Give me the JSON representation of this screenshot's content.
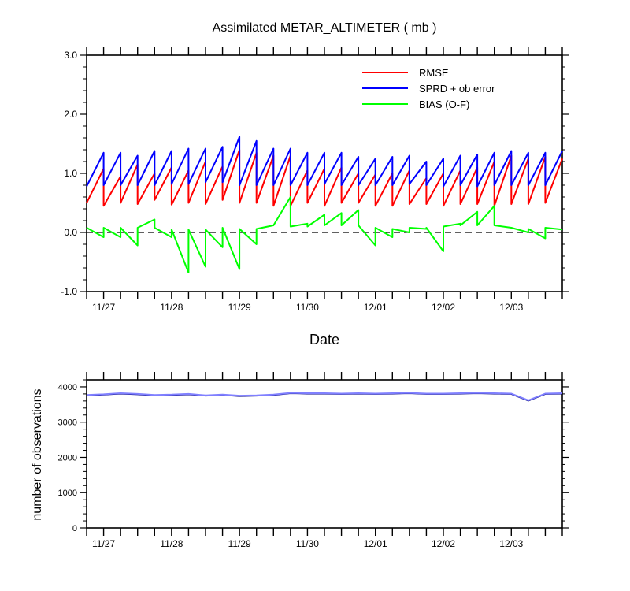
{
  "chart_data": [
    {
      "type": "line",
      "title": "Assimilated METAR_ALTIMETER ( mb )",
      "xlabel": "Date",
      "ylabel": "",
      "xlim": [
        0,
        7.0
      ],
      "ylim": [
        -1.0,
        3.0
      ],
      "x_tick_labels": [
        {
          "x": 0.25,
          "label": "11/27"
        },
        {
          "x": 1.25,
          "label": "11/28"
        },
        {
          "x": 2.25,
          "label": "11/29"
        },
        {
          "x": 3.25,
          "label": "11/30"
        },
        {
          "x": 4.25,
          "label": "12/01"
        },
        {
          "x": 5.25,
          "label": "12/02"
        },
        {
          "x": 6.25,
          "label": "12/03"
        }
      ],
      "y_ticks": [
        -1.0,
        0.0,
        1.0,
        2.0,
        3.0
      ],
      "y_tick_labels": [
        "-1.0",
        "0.0",
        "1.0",
        "2.0",
        "3.0"
      ],
      "legend_position": "top-right",
      "zero_line": 0.0,
      "series": [
        {
          "name": "RMSE",
          "color": "#ff0000",
          "x": [
            0,
            0.25,
            0.25,
            0.5,
            0.5,
            0.75,
            0.75,
            1.0,
            1.0,
            1.25,
            1.25,
            1.5,
            1.5,
            1.75,
            1.75,
            2.0,
            2.0,
            2.25,
            2.25,
            2.5,
            2.5,
            2.75,
            2.75,
            3.0,
            3.0,
            3.25,
            3.25,
            3.5,
            3.5,
            3.75,
            3.75,
            4.0,
            4.0,
            4.25,
            4.25,
            4.5,
            4.5,
            4.75,
            4.75,
            5.0,
            5.0,
            5.25,
            5.25,
            5.5,
            5.5,
            5.75,
            5.75,
            6.0,
            6.0,
            6.25,
            6.25,
            6.5,
            6.5,
            6.75,
            6.75,
            7.0
          ],
          "y": [
            0.5,
            1.08,
            0.45,
            0.95,
            0.5,
            1.15,
            0.48,
            1.0,
            0.55,
            1.1,
            0.47,
            1.05,
            0.5,
            1.2,
            0.48,
            1.12,
            0.55,
            1.4,
            0.5,
            1.35,
            0.5,
            1.3,
            0.45,
            1.3,
            0.45,
            1.05,
            0.5,
            1.08,
            0.45,
            1.1,
            0.5,
            1.0,
            0.5,
            0.98,
            0.45,
            1.0,
            0.45,
            1.05,
            0.48,
            0.92,
            0.48,
            1.0,
            0.45,
            1.05,
            0.48,
            1.1,
            0.48,
            1.2,
            0.45,
            1.3,
            0.48,
            1.25,
            0.48,
            1.28,
            0.5,
            1.25
          ]
        },
        {
          "name": "SPRD + ob error",
          "color": "#0000ff",
          "x": [
            0,
            0.25,
            0.25,
            0.5,
            0.5,
            0.75,
            0.75,
            1.0,
            1.0,
            1.25,
            1.25,
            1.5,
            1.5,
            1.75,
            1.75,
            2.0,
            2.0,
            2.25,
            2.25,
            2.5,
            2.5,
            2.75,
            2.75,
            3.0,
            3.0,
            3.25,
            3.25,
            3.5,
            3.5,
            3.75,
            3.75,
            4.0,
            4.0,
            4.25,
            4.25,
            4.5,
            4.5,
            4.75,
            4.75,
            5.0,
            5.0,
            5.25,
            5.25,
            5.5,
            5.5,
            5.75,
            5.75,
            6.0,
            6.0,
            6.25,
            6.25,
            6.5,
            6.5,
            6.75,
            6.75,
            7.0
          ],
          "y": [
            0.78,
            1.35,
            0.8,
            1.35,
            0.8,
            1.3,
            0.8,
            1.38,
            0.8,
            1.38,
            0.82,
            1.42,
            0.82,
            1.42,
            0.85,
            1.45,
            0.85,
            1.62,
            0.8,
            1.55,
            0.8,
            1.42,
            0.8,
            1.42,
            0.8,
            1.35,
            0.8,
            1.35,
            0.82,
            1.35,
            0.8,
            1.28,
            0.8,
            1.25,
            0.8,
            1.28,
            0.8,
            1.3,
            0.82,
            1.2,
            0.8,
            1.25,
            0.78,
            1.3,
            0.8,
            1.32,
            0.78,
            1.35,
            0.8,
            1.38,
            0.8,
            1.35,
            0.8,
            1.35,
            0.8,
            1.38
          ]
        },
        {
          "name": "BIAS (O-F)",
          "color": "#00ff00",
          "x": [
            0,
            0.25,
            0.25,
            0.5,
            0.5,
            0.75,
            0.75,
            1.0,
            1.0,
            1.25,
            1.25,
            1.5,
            1.5,
            1.75,
            1.75,
            2.0,
            2.0,
            2.25,
            2.25,
            2.5,
            2.5,
            2.75,
            2.75,
            3.0,
            3.0,
            3.25,
            3.25,
            3.5,
            3.5,
            3.75,
            3.75,
            4.0,
            4.0,
            4.25,
            4.25,
            4.5,
            4.5,
            4.75,
            4.75,
            5.0,
            5.0,
            5.25,
            5.25,
            5.5,
            5.5,
            5.75,
            5.75,
            6.0,
            6.0,
            6.25,
            6.25,
            6.5,
            6.5,
            6.75,
            6.75,
            7.0
          ],
          "y": [
            0.08,
            -0.08,
            0.08,
            -0.08,
            0.08,
            -0.22,
            0.08,
            0.22,
            0.08,
            -0.08,
            0.05,
            -0.68,
            0.05,
            -0.58,
            0.05,
            -0.25,
            0.08,
            -0.62,
            0.06,
            -0.2,
            0.06,
            0.12,
            0.12,
            0.6,
            0.1,
            0.15,
            0.1,
            0.3,
            0.12,
            0.33,
            0.12,
            0.38,
            0.12,
            -0.22,
            0.08,
            -0.08,
            0.06,
            0.0,
            0.08,
            0.06,
            0.08,
            -0.32,
            0.1,
            0.15,
            0.12,
            0.35,
            0.12,
            0.45,
            0.12,
            0.08,
            0.08,
            0.0,
            0.06,
            -0.1,
            0.08,
            0.05
          ]
        }
      ]
    },
    {
      "type": "line",
      "title": "",
      "xlabel": "",
      "ylabel": "number of observations",
      "xlim": [
        0,
        7.0
      ],
      "ylim": [
        0,
        4200
      ],
      "x_tick_labels": [
        {
          "x": 0.25,
          "label": "11/27"
        },
        {
          "x": 1.25,
          "label": "11/28"
        },
        {
          "x": 2.25,
          "label": "11/29"
        },
        {
          "x": 3.25,
          "label": "11/30"
        },
        {
          "x": 4.25,
          "label": "12/01"
        },
        {
          "x": 5.25,
          "label": "12/02"
        },
        {
          "x": 6.25,
          "label": "12/03"
        }
      ],
      "y_ticks": [
        0,
        1000,
        2000,
        3000,
        4000
      ],
      "y_tick_labels": [
        "0",
        "1000",
        "2000",
        "3000",
        "4000"
      ],
      "series": [
        {
          "color": "#000080",
          "x": [
            0,
            0.25,
            0.5,
            0.75,
            1.0,
            1.25,
            1.5,
            1.75,
            2.0,
            2.25,
            2.5,
            2.75,
            3.0,
            3.25,
            3.5,
            3.75,
            4.0,
            4.25,
            4.5,
            4.75,
            5.0,
            5.25,
            5.5,
            5.75,
            6.0,
            6.25,
            6.5,
            6.75,
            7.0
          ],
          "y": [
            3760,
            3780,
            3810,
            3790,
            3760,
            3770,
            3790,
            3750,
            3770,
            3740,
            3750,
            3770,
            3820,
            3810,
            3810,
            3800,
            3810,
            3800,
            3810,
            3820,
            3800,
            3800,
            3810,
            3820,
            3810,
            3800,
            3610,
            3800,
            3810
          ]
        },
        {
          "color": "#8080ff",
          "x": [
            0,
            0.25,
            0.5,
            0.75,
            1.0,
            1.25,
            1.5,
            1.75,
            2.0,
            2.25,
            2.5,
            2.75,
            3.0,
            3.25,
            3.5,
            3.75,
            4.0,
            4.25,
            4.5,
            4.75,
            5.0,
            5.25,
            5.5,
            5.75,
            6.0,
            6.25,
            6.5,
            6.75,
            7.0
          ],
          "y": [
            3770,
            3790,
            3820,
            3800,
            3770,
            3780,
            3800,
            3760,
            3780,
            3750,
            3760,
            3780,
            3830,
            3820,
            3820,
            3810,
            3820,
            3810,
            3820,
            3830,
            3810,
            3810,
            3820,
            3830,
            3820,
            3810,
            3620,
            3810,
            3820
          ]
        }
      ]
    }
  ]
}
